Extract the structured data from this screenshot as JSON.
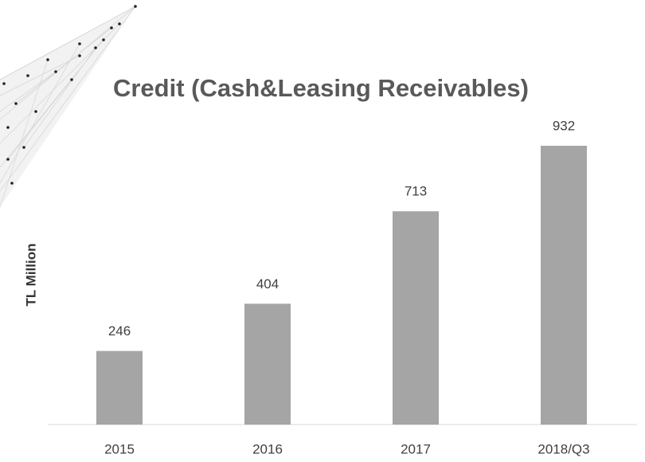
{
  "chart_data": {
    "type": "bar",
    "title": "Credit (Cash&Leasing Receivables)",
    "y_label": "TL Million",
    "categories": [
      "2015",
      "2016",
      "2017",
      "2018/Q3"
    ],
    "values": [
      246,
      404,
      713,
      932
    ],
    "color": "#a5a5a5"
  }
}
